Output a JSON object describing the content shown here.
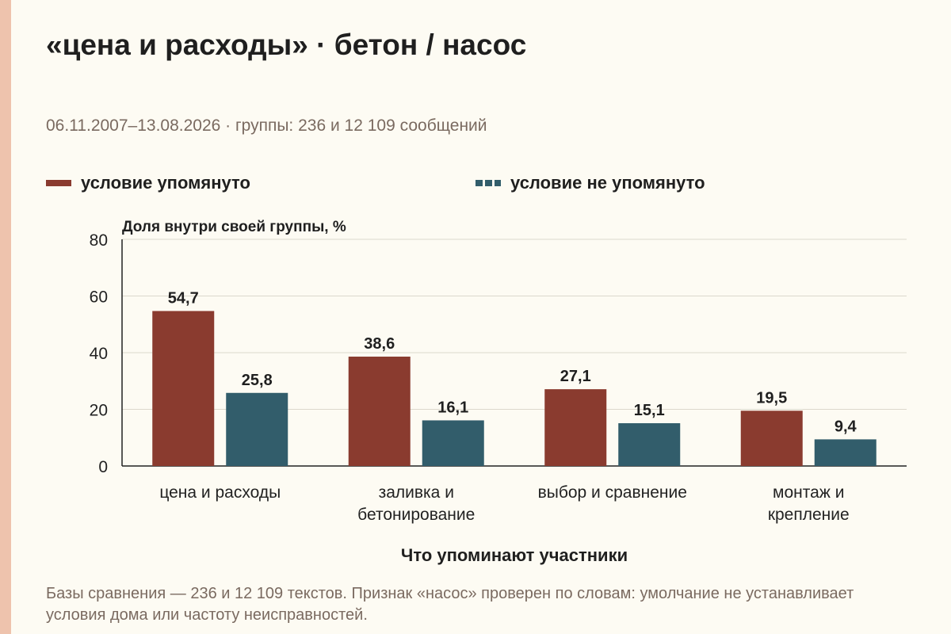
{
  "title": "«цена и расходы» · бетон / насос",
  "subtitle": "06.11.2007–13.08.2026 · группы: 236 и 12 109 сообщений",
  "footnote": "Базы сравнения — 236 и 12 109 текстов. Признак «насос» проверен по словам: умолчание не устанавливает условия дома или частоту неисправностей.",
  "colors": {
    "series1": "#8a3b2f",
    "series2": "#325d6b",
    "accent_strip": "#eec3ad"
  },
  "chart_data": {
    "type": "bar",
    "ylabel": "Доля внутри своей группы, %",
    "xlabel": "Что упоминают участники",
    "categories": [
      [
        "цена и расходы"
      ],
      [
        "заливка и",
        "бетонирование"
      ],
      [
        "выбор и сравнение"
      ],
      [
        "монтаж и",
        "крепление"
      ]
    ],
    "series": [
      {
        "name": "условие упомянуто",
        "values": [
          54.7,
          38.6,
          27.1,
          19.5
        ],
        "labels": [
          "54,7",
          "38,6",
          "27,1",
          "19,5"
        ]
      },
      {
        "name": "условие не упомянуто",
        "values": [
          25.8,
          16.1,
          15.1,
          9.4
        ],
        "labels": [
          "25,8",
          "16,1",
          "15,1",
          "9,4"
        ]
      }
    ],
    "ylim": [
      0,
      80
    ],
    "yticks": [
      0,
      20,
      40,
      60,
      80
    ],
    "grid": true,
    "legend_position": "top"
  }
}
